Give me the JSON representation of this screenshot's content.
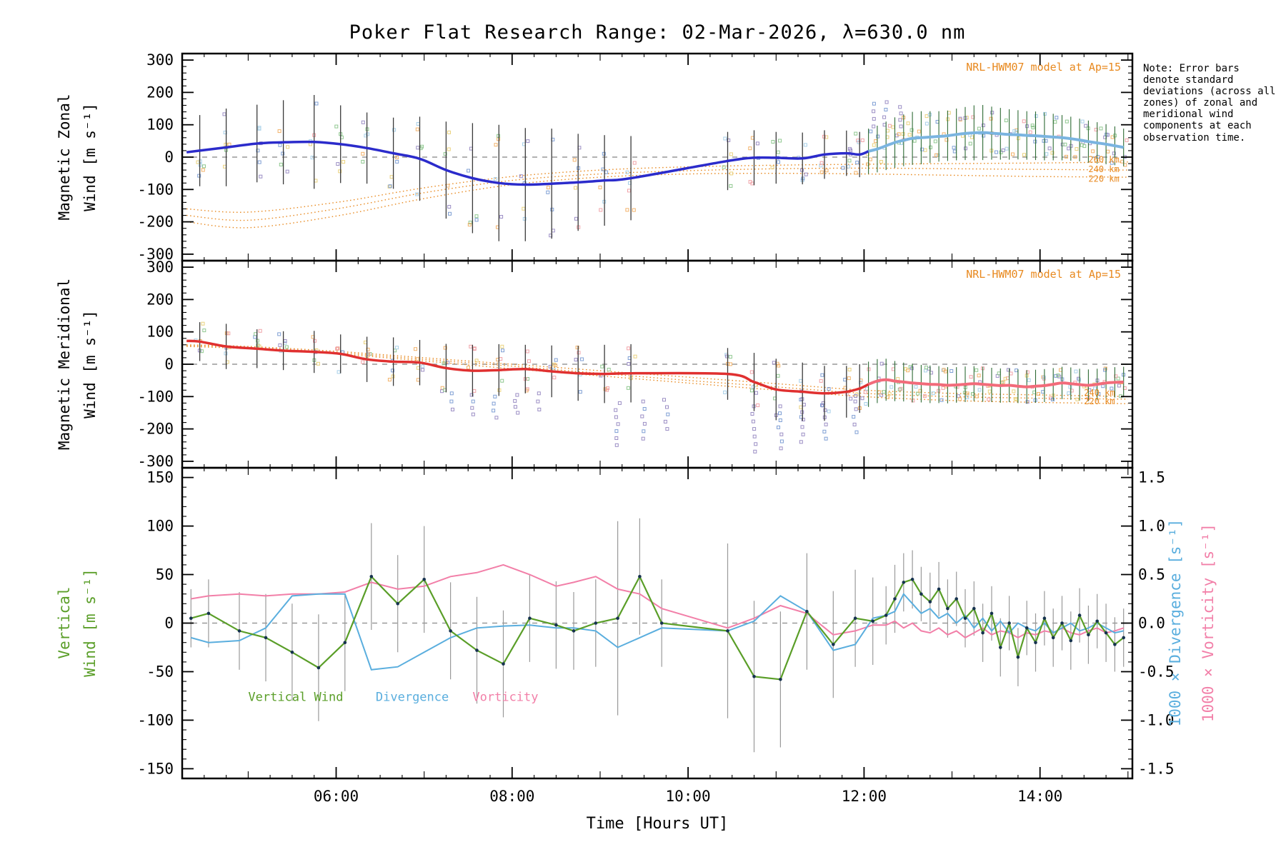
{
  "title": "Poker Flat Research Range: 02-Mar-2026, λ=630.0 nm",
  "note": "Note: Error bars denote standard deviations (across all zones) of zonal and meridional wind components at each observation time.",
  "xlabel": "Time [Hours UT]",
  "model_annotation": "NRL-HWM07 model at Ap=15",
  "legend": {
    "vertical_wind": "Vertical Wind",
    "divergence": "Divergence",
    "vorticity": "Vorticity"
  },
  "colors": {
    "zonal": "#2b2bcb",
    "zonal_dense": "#7ab4e0",
    "meridional": "#e03030",
    "meridional_dense": "#f26b7a",
    "model": "#e8891f",
    "vertical_wind": "#5a9e28",
    "divergence": "#5aaede",
    "vorticity": "#f27fa8",
    "errorbar": "#3a3a3a",
    "errorbar_dense": "#2e6b34",
    "errorbar_gray": "#9a9a9a",
    "dot_dense": "#16324f",
    "zero_line": "#999999",
    "scatter_palette": [
      "#9b8ec4",
      "#7f9fd4",
      "#a8d0e8",
      "#f2b26a",
      "#ead27e",
      "#f0a3a8",
      "#90c890"
    ]
  },
  "chart_data": [
    {
      "type": "line",
      "name": "magnetic-zonal-wind",
      "ylabel_line1": "Magnetic Zonal",
      "ylabel_line2": "Wind [m s⁻¹]",
      "xlim": [
        4.25,
        15.05
      ],
      "xtick_t": [
        6,
        8,
        10,
        12,
        14
      ],
      "xtick_labels": [
        "06:00",
        "08:00",
        "10:00",
        "12:00",
        "14:00"
      ],
      "ylim": [
        -320,
        320
      ],
      "yticks": [
        -300,
        -200,
        -100,
        0,
        100,
        200,
        300
      ],
      "ytick_minor": 20,
      "series_main": {
        "name": "zonal wind (clear sky)",
        "x": [
          4.3,
          4.45,
          4.75,
          5.1,
          5.4,
          5.75,
          6.05,
          6.35,
          6.65,
          6.95,
          7.25,
          7.55,
          7.85,
          8.15,
          8.45,
          8.75,
          9.05,
          9.35,
          10.45,
          10.75,
          11.0,
          11.3,
          11.55,
          11.8,
          11.95
        ],
        "y": [
          15,
          20,
          30,
          42,
          46,
          47,
          40,
          28,
          12,
          -5,
          -40,
          -65,
          -80,
          -85,
          -82,
          -78,
          -72,
          -65,
          -12,
          -2,
          -2,
          -4,
          8,
          12,
          8
        ],
        "err": [
          0,
          110,
          120,
          120,
          130,
          145,
          120,
          110,
          110,
          130,
          150,
          170,
          180,
          175,
          170,
          150,
          140,
          130,
          90,
          85,
          80,
          80,
          75,
          70,
          70
        ]
      },
      "series_dense": {
        "name": "zonal wind (dense cadence)",
        "x": [
          12.05,
          12.15,
          12.25,
          12.35,
          12.45,
          12.55,
          12.65,
          12.75,
          12.85,
          12.95,
          13.05,
          13.15,
          13.25,
          13.35,
          13.45,
          13.55,
          13.65,
          13.75,
          13.85,
          13.95,
          14.05,
          14.15,
          14.25,
          14.35,
          14.45,
          14.55,
          14.65,
          14.75,
          14.85,
          14.95
        ],
        "y": [
          18,
          25,
          35,
          45,
          52,
          58,
          60,
          62,
          64,
          66,
          70,
          73,
          75,
          76,
          74,
          72,
          70,
          69,
          67,
          66,
          64,
          62,
          60,
          57,
          53,
          48,
          44,
          40,
          35,
          30
        ],
        "err": [
          70,
          72,
          75,
          78,
          80,
          82,
          82,
          80,
          78,
          78,
          80,
          82,
          85,
          85,
          82,
          80,
          78,
          76,
          75,
          75,
          74,
          72,
          70,
          68,
          66,
          65,
          64,
          62,
          60,
          58
        ]
      },
      "model_x": [
        4.3,
        5,
        6,
        7,
        8,
        9,
        10,
        11,
        12,
        13,
        14,
        15
      ],
      "model_lines": [
        {
          "label": "260 km",
          "y": [
            -160,
            -170,
            -140,
            -95,
            -60,
            -40,
            -30,
            -25,
            -22,
            -20,
            -18,
            -15
          ]
        },
        {
          "label": "240 km",
          "y": [
            -180,
            -195,
            -160,
            -110,
            -72,
            -52,
            -42,
            -36,
            -34,
            -36,
            -38,
            -40
          ]
        },
        {
          "label": "220 km",
          "y": [
            -200,
            -218,
            -182,
            -128,
            -85,
            -62,
            -52,
            -50,
            -52,
            -56,
            -60,
            -62
          ]
        }
      ],
      "model_labels": [
        {
          "label": "260 km",
          "x": 14.55,
          "y": -16
        },
        {
          "label": "240 km",
          "x": 14.55,
          "y": -46
        },
        {
          "label": "220 km",
          "x": 14.55,
          "y": -76
        }
      ],
      "extra_scatter": [
        {
          "x": 12.1,
          "y0": 95,
          "y1": 165
        },
        {
          "x": 12.25,
          "y0": 100,
          "y1": 170
        },
        {
          "x": 12.4,
          "y0": 95,
          "y1": 155
        }
      ]
    },
    {
      "type": "line",
      "name": "magnetic-meridional-wind",
      "ylabel_line1": "Magnetic Meridional",
      "ylabel_line2": "Wind [m s⁻¹]",
      "xlim": [
        4.25,
        15.05
      ],
      "ylim": [
        -320,
        320
      ],
      "yticks": [
        -300,
        -200,
        -100,
        0,
        100,
        200,
        300
      ],
      "ytick_minor": 20,
      "series_main": {
        "name": "meridional wind (clear sky)",
        "x": [
          4.3,
          4.45,
          4.75,
          5.1,
          5.4,
          5.75,
          6.05,
          6.35,
          6.65,
          6.95,
          7.25,
          7.55,
          7.85,
          8.15,
          8.45,
          8.75,
          9.05,
          9.35,
          10.45,
          10.75,
          11.0,
          11.3,
          11.55,
          11.8,
          11.95
        ],
        "y": [
          72,
          70,
          55,
          48,
          42,
          38,
          32,
          15,
          8,
          5,
          -12,
          -20,
          -18,
          -15,
          -22,
          -28,
          -30,
          -28,
          -30,
          -55,
          -78,
          -85,
          -90,
          -85,
          -75
        ],
        "err": [
          0,
          60,
          70,
          60,
          60,
          65,
          60,
          70,
          75,
          70,
          75,
          80,
          80,
          75,
          80,
          85,
          90,
          90,
          80,
          90,
          95,
          90,
          85,
          80,
          75
        ]
      },
      "series_dense": {
        "name": "meridional wind (dense cadence)",
        "x": [
          12.05,
          12.15,
          12.25,
          12.35,
          12.45,
          12.55,
          12.65,
          12.75,
          12.85,
          12.95,
          13.05,
          13.15,
          13.25,
          13.35,
          13.45,
          13.55,
          13.65,
          13.75,
          13.85,
          13.95,
          14.05,
          14.15,
          14.25,
          14.35,
          14.45,
          14.55,
          14.65,
          14.75,
          14.85,
          14.95
        ],
        "y": [
          -62,
          -52,
          -48,
          -52,
          -55,
          -58,
          -60,
          -62,
          -63,
          -65,
          -64,
          -62,
          -60,
          -62,
          -64,
          -66,
          -65,
          -68,
          -70,
          -68,
          -66,
          -62,
          -58,
          -60,
          -63,
          -65,
          -62,
          -58,
          -56,
          -55
        ],
        "err": [
          70,
          68,
          65,
          62,
          60,
          60,
          58,
          58,
          57,
          56,
          55,
          55,
          54,
          54,
          53,
          53,
          52,
          52,
          52,
          51,
          51,
          50,
          50,
          50,
          49,
          49,
          48,
          48,
          47,
          47
        ]
      },
      "model_x": [
        4.3,
        5,
        6,
        7,
        8,
        9,
        10,
        11,
        12,
        13,
        14,
        15
      ],
      "model_lines": [
        {
          "label": "260 km",
          "y": [
            60,
            55,
            40,
            20,
            0,
            -20,
            -40,
            -60,
            -80,
            -90,
            -95,
            -100
          ]
        },
        {
          "label": "240 km",
          "y": [
            58,
            52,
            36,
            15,
            -6,
            -28,
            -50,
            -70,
            -90,
            -100,
            -105,
            -108
          ]
        },
        {
          "label": "220 km",
          "y": [
            55,
            48,
            32,
            10,
            -14,
            -36,
            -58,
            -80,
            -100,
            -112,
            -118,
            -122
          ]
        }
      ],
      "model_labels": [
        {
          "label": "240 km",
          "x": 14.5,
          "y": -97
        },
        {
          "label": "220 km",
          "x": 14.5,
          "y": -124
        }
      ],
      "extra_scatter": [
        {
          "x": 7.3,
          "y0": -90,
          "y1": -140
        },
        {
          "x": 7.55,
          "y0": -95,
          "y1": -155
        },
        {
          "x": 7.8,
          "y0": -100,
          "y1": -165
        },
        {
          "x": 8.05,
          "y0": -95,
          "y1": -150
        },
        {
          "x": 8.3,
          "y0": -90,
          "y1": -140
        },
        {
          "x": 9.2,
          "y0": -120,
          "y1": -250
        },
        {
          "x": 9.5,
          "y0": -115,
          "y1": -230
        },
        {
          "x": 9.75,
          "y0": -110,
          "y1": -200
        },
        {
          "x": 10.75,
          "y0": -130,
          "y1": -270
        },
        {
          "x": 11.05,
          "y0": -130,
          "y1": -260
        },
        {
          "x": 11.3,
          "y0": -125,
          "y1": -240
        },
        {
          "x": 11.55,
          "y0": -120,
          "y1": -230
        },
        {
          "x": 11.9,
          "y0": -115,
          "y1": -210
        }
      ]
    },
    {
      "type": "line",
      "name": "vertical-wind-divergence-vorticity",
      "ylabel_line1": "Vertical",
      "ylabel_line2": "Wind [m s⁻¹]",
      "ylabel_right1": "1000 × Divergence [s⁻¹]",
      "ylabel_right2": "1000 × Vorticity  [s⁻¹]",
      "xlim": [
        4.25,
        15.05
      ],
      "ylim": [
        -160,
        160
      ],
      "yticks": [
        -150,
        -100,
        -50,
        0,
        50,
        100,
        150
      ],
      "ytick_minor": 10,
      "ylim_right": [
        -1.6,
        1.6
      ],
      "yticks_right": [
        -1.5,
        -1.0,
        -0.5,
        0.0,
        0.5,
        1.0,
        1.5
      ],
      "vertical_wind": {
        "x": [
          4.35,
          4.55,
          4.9,
          5.2,
          5.5,
          5.8,
          6.1,
          6.4,
          6.7,
          7.0,
          7.3,
          7.6,
          7.9,
          8.2,
          8.5,
          8.7,
          8.95,
          9.2,
          9.45,
          9.7,
          10.45,
          10.75,
          11.05,
          11.35,
          11.65,
          11.9,
          12.1
        ],
        "y": [
          5,
          10,
          -8,
          -15,
          -30,
          -46,
          -20,
          48,
          20,
          45,
          -8,
          -28,
          -42,
          5,
          -2,
          -8,
          0,
          5,
          48,
          0,
          -8,
          -55,
          -58,
          12,
          -22,
          5,
          2
        ],
        "err": [
          30,
          35,
          40,
          45,
          50,
          55,
          50,
          55,
          50,
          55,
          50,
          55,
          55,
          45,
          45,
          40,
          45,
          100,
          60,
          45,
          90,
          78,
          70,
          60,
          55,
          50,
          45
        ],
        "x_dense": [
          12.25,
          12.35,
          12.45,
          12.55,
          12.65,
          12.75,
          12.85,
          12.95,
          13.05,
          13.15,
          13.25,
          13.35,
          13.45,
          13.55,
          13.65,
          13.75,
          13.85,
          13.95,
          14.05,
          14.15,
          14.25,
          14.35,
          14.45,
          14.55,
          14.65,
          14.75,
          14.85,
          14.95
        ],
        "y_dense": [
          8,
          25,
          42,
          45,
          30,
          22,
          35,
          15,
          25,
          5,
          15,
          -10,
          10,
          -25,
          0,
          -35,
          -5,
          -20,
          5,
          -15,
          0,
          -18,
          8,
          -12,
          2,
          -10,
          -22,
          -15
        ],
        "err_dense": [
          30,
          35,
          30,
          30,
          28,
          30,
          28,
          30,
          28,
          30,
          28,
          30,
          28,
          30,
          28,
          30,
          28,
          30,
          28,
          30,
          28,
          30,
          28,
          30,
          28,
          30,
          28,
          30
        ]
      },
      "divergence": {
        "y": [
          -0.15,
          -0.2,
          -0.18,
          -0.05,
          0.28,
          0.3,
          0.3,
          -0.48,
          -0.45,
          -0.3,
          -0.15,
          -0.05,
          -0.03,
          -0.02,
          -0.05,
          -0.05,
          -0.08,
          -0.25,
          -0.15,
          -0.05,
          -0.08,
          0.02,
          0.28,
          0.12,
          -0.28,
          -0.22,
          0.05
        ],
        "y_dense": [
          0.08,
          0.12,
          0.3,
          0.2,
          0.1,
          0.15,
          0.05,
          0.1,
          0.0,
          0.08,
          -0.05,
          0.05,
          -0.08,
          0.02,
          -0.1,
          0.0,
          -0.05,
          -0.08,
          0.0,
          -0.1,
          -0.05,
          0.0,
          -0.08,
          -0.05,
          0.0,
          -0.05,
          -0.1,
          -0.08
        ]
      },
      "vorticity": {
        "y": [
          0.25,
          0.28,
          0.3,
          0.28,
          0.3,
          0.3,
          0.32,
          0.42,
          0.35,
          0.38,
          0.48,
          0.52,
          0.6,
          0.5,
          0.38,
          0.42,
          0.48,
          0.35,
          0.3,
          0.15,
          -0.05,
          0.05,
          0.18,
          0.1,
          -0.12,
          -0.08,
          -0.02
        ],
        "y_dense": [
          -0.02,
          0.02,
          -0.05,
          0.0,
          -0.08,
          -0.1,
          -0.05,
          -0.12,
          -0.08,
          -0.15,
          -0.1,
          -0.05,
          -0.12,
          -0.08,
          -0.1,
          -0.15,
          -0.1,
          -0.12,
          -0.08,
          -0.1,
          -0.05,
          -0.1,
          -0.12,
          -0.08,
          -0.05,
          -0.1,
          -0.08,
          -0.05
        ]
      }
    }
  ]
}
